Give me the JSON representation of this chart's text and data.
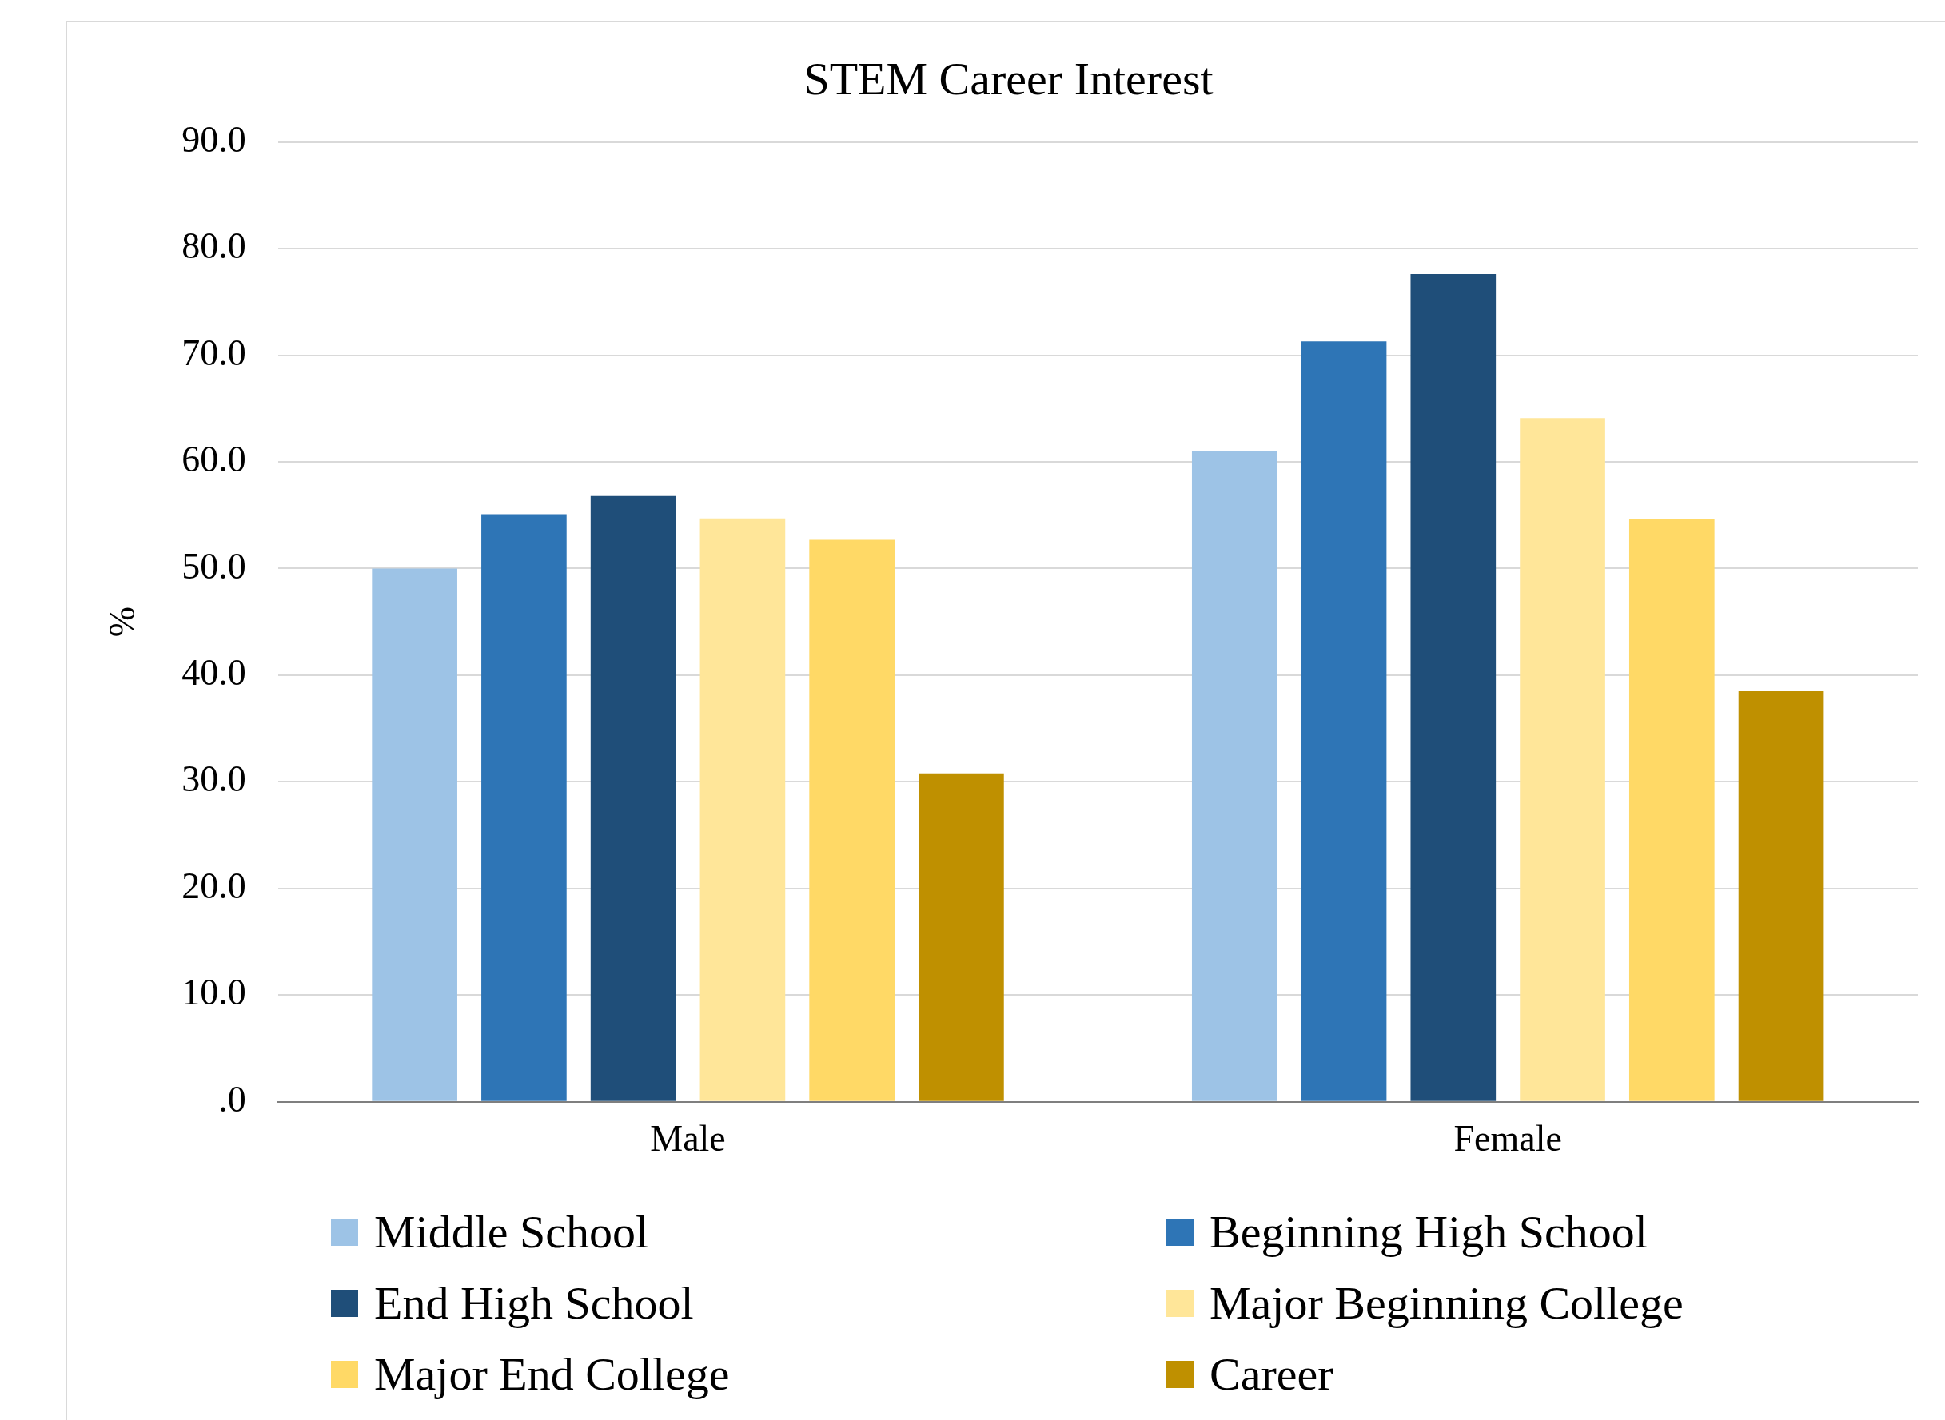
{
  "chart_data": {
    "type": "bar",
    "title": "STEM Career Interest",
    "ylabel": "%",
    "categories": [
      "Male",
      "Female"
    ],
    "series": [
      {
        "name": "Middle School",
        "color": "#9dc3e6",
        "values": [
          50.0,
          61.0
        ]
      },
      {
        "name": "Beginning High School",
        "color": "#2e75b6",
        "values": [
          55.1,
          71.3
        ]
      },
      {
        "name": "End High School",
        "color": "#1f4e79",
        "values": [
          56.8,
          77.6
        ]
      },
      {
        "name": "Major Beginning College",
        "color": "#ffe699",
        "values": [
          54.7,
          64.1
        ]
      },
      {
        "name": "Major End College",
        "color": "#ffd966",
        "values": [
          52.7,
          54.6
        ]
      },
      {
        "name": "Career",
        "color": "#bf9000",
        "values": [
          30.8,
          38.5
        ]
      }
    ],
    "ylim": [
      0,
      90
    ],
    "yticks": [
      {
        "value": 0,
        "label": ".0"
      },
      {
        "value": 10,
        "label": "10.0"
      },
      {
        "value": 20,
        "label": "20.0"
      },
      {
        "value": 30,
        "label": "30.0"
      },
      {
        "value": 40,
        "label": "40.0"
      },
      {
        "value": 50,
        "label": "50.0"
      },
      {
        "value": 60,
        "label": "60.0"
      },
      {
        "value": 70,
        "label": "70.0"
      },
      {
        "value": 80,
        "label": "80.0"
      },
      {
        "value": 90,
        "label": "90.0"
      }
    ],
    "grid": "y",
    "legend": "bottom"
  }
}
